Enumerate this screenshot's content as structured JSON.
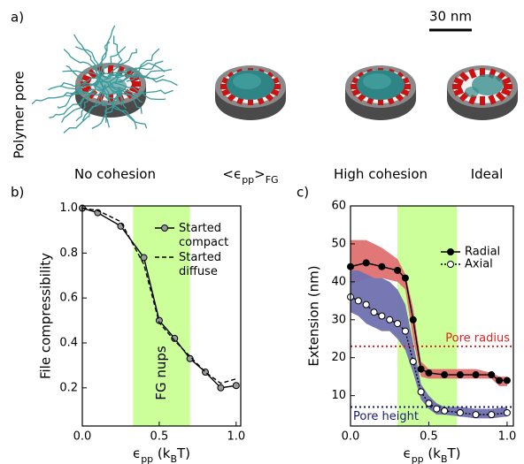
{
  "figure": {
    "panel_a": {
      "label": "a)",
      "row_label": "Polymer pore",
      "scale_bar": "30 nm",
      "captions": [
        [
          "No cohesion"
        ],
        [
          "<ϵ",
          "pp",
          ">",
          "FG"
        ],
        [
          "High cohesion"
        ],
        [
          "Ideal"
        ]
      ]
    }
  },
  "chart_data": [
    {
      "type": "line",
      "panel_label": "b)",
      "ylabel": "File compressibility",
      "xlabel": [
        "ϵ",
        "pp",
        " (k",
        "B",
        "T)"
      ],
      "xlim": [
        0,
        1.03
      ],
      "ylim": [
        0.03,
        1.01
      ],
      "xticks": [
        {
          "value": 0,
          "label": "0.0"
        },
        {
          "value": 0.5,
          "label": "0.5"
        },
        {
          "value": 1,
          "label": "1.0"
        }
      ],
      "yticks": [
        0.2,
        0.4,
        0.6,
        0.8,
        {
          "value": 1,
          "label": "1.0"
        }
      ],
      "shade": {
        "xlim": [
          0.33,
          0.7
        ],
        "color": "#ccff99",
        "label": "FG nups"
      },
      "series": [
        {
          "name": "Started compact",
          "color": "#000000",
          "marker": "gray",
          "dash": "none",
          "x": [
            0,
            0.1,
            0.25,
            0.4,
            0.5,
            0.6,
            0.7,
            0.8,
            0.9,
            1.0
          ],
          "values": [
            1.0,
            0.98,
            0.92,
            0.78,
            0.5,
            0.42,
            0.33,
            0.27,
            0.2,
            0.21
          ]
        },
        {
          "name": "Started diffuse",
          "color": "#000000",
          "marker": "none",
          "dash": "5,3",
          "x": [
            0,
            0.1,
            0.25,
            0.4,
            0.5,
            0.6,
            0.7,
            0.8,
            0.9,
            1.0
          ],
          "values": [
            1.0,
            0.99,
            0.94,
            0.75,
            0.49,
            0.41,
            0.34,
            0.27,
            0.22,
            0.24
          ]
        }
      ]
    },
    {
      "type": "line",
      "panel_label": "c)",
      "ylabel": "Extension (nm)",
      "xlabel": [
        "ϵ",
        "pp",
        " (k",
        "B",
        "T)"
      ],
      "xlim": [
        0,
        1.04
      ],
      "ylim": [
        2,
        60
      ],
      "xticks": [
        {
          "value": 0,
          "label": "0.0"
        },
        {
          "value": 0.5,
          "label": "0.5"
        },
        {
          "value": 1,
          "label": "1.0"
        }
      ],
      "yticks": [
        10,
        20,
        30,
        40,
        50,
        60
      ],
      "shade": {
        "xlim": [
          0.3,
          0.68
        ],
        "color": "#ccff99"
      },
      "bands": [
        {
          "color": "#e07070",
          "x": [
            0,
            0.1,
            0.2,
            0.3,
            0.35,
            0.4,
            0.45,
            0.5,
            0.6,
            0.7,
            0.8,
            0.9,
            0.95,
            1.0
          ],
          "upper": [
            51,
            51,
            49,
            46,
            42,
            33,
            19,
            17,
            17,
            17,
            17,
            16,
            15,
            15
          ],
          "lower": [
            39,
            41,
            41,
            40,
            38,
            25,
            15,
            14.5,
            14.5,
            14.5,
            14.5,
            14.5,
            12.5,
            12.5
          ]
        },
        {
          "color": "#7070b0",
          "x": [
            0,
            0.05,
            0.1,
            0.15,
            0.2,
            0.25,
            0.3,
            0.35,
            0.4,
            0.45,
            0.5,
            0.55,
            0.6,
            0.7,
            0.8,
            0.9,
            1.0
          ],
          "upper": [
            43,
            43,
            42,
            41,
            41,
            40,
            38,
            34,
            24,
            13,
            10,
            8,
            7,
            7,
            6.5,
            6.5,
            7
          ],
          "lower": [
            32,
            31,
            29,
            28,
            27,
            27,
            25,
            22,
            16,
            9,
            6.5,
            5,
            5,
            4.5,
            4,
            4,
            4.5
          ]
        }
      ],
      "hlines": [
        {
          "value": 23,
          "label": "Pore radius",
          "color": "#dd2222"
        },
        {
          "value": 7,
          "label": "Pore height",
          "color": "#1a1a7a"
        }
      ],
      "series": [
        {
          "name": "Radial",
          "color": "#000000",
          "marker": "filled",
          "dash": "none",
          "x": [
            0,
            0.1,
            0.2,
            0.3,
            0.35,
            0.4,
            0.45,
            0.5,
            0.6,
            0.7,
            0.8,
            0.9,
            0.95,
            1.0
          ],
          "values": [
            44,
            45,
            44,
            43,
            41,
            30,
            17,
            16,
            15.5,
            15.5,
            15.5,
            15.5,
            14,
            14
          ]
        },
        {
          "name": "Axial",
          "color": "#000000",
          "marker": "open",
          "dash": "2,2",
          "x": [
            0,
            0.05,
            0.1,
            0.15,
            0.2,
            0.25,
            0.3,
            0.35,
            0.4,
            0.45,
            0.5,
            0.55,
            0.6,
            0.7,
            0.8,
            0.9,
            1.0
          ],
          "values": [
            36,
            35,
            34,
            32,
            31,
            30,
            29,
            27,
            19,
            11,
            8,
            6.5,
            6,
            5.5,
            5,
            5,
            5.5
          ]
        }
      ]
    }
  ]
}
